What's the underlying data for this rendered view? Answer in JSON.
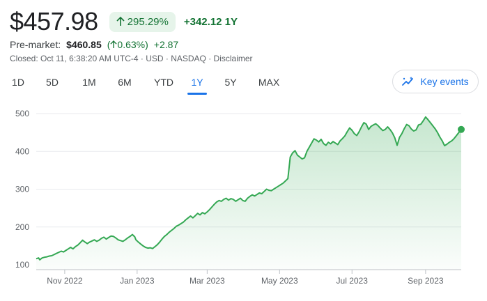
{
  "quote": {
    "price": "$457.98",
    "change_pct": "295.29%",
    "change_abs": "+342.12",
    "period": "1Y",
    "premarket_label": "Pre-market:",
    "premarket_price": "$460.85",
    "premarket_pct": "0.63%",
    "premarket_change": "+2.87",
    "closed_info": "Closed: Oct 11, 6:38:20 AM UTC-4 · USD · NASDAQ · ",
    "disclaimer": "Disclaimer"
  },
  "tabs": [
    "1D",
    "5D",
    "1M",
    "6M",
    "YTD",
    "1Y",
    "5Y",
    "MAX"
  ],
  "active_tab": "1Y",
  "key_events_label": "Key events",
  "colors": {
    "line": "#34a853",
    "positive": "#137333",
    "accent": "#1a73e8"
  },
  "chart_data": {
    "type": "area",
    "title": "",
    "xlabel": "",
    "ylabel": "",
    "ylim": [
      100,
      520
    ],
    "yticks": [
      100,
      200,
      300,
      400,
      500
    ],
    "xticks": [
      {
        "label": "Nov 2022",
        "x": 24
      },
      {
        "label": "Jan 2023",
        "x": 85
      },
      {
        "label": "Mar 2023",
        "x": 144
      },
      {
        "label": "May 2023",
        "x": 205
      },
      {
        "label": "Jul 2023",
        "x": 266
      },
      {
        "label": "Sep 2023",
        "x": 328
      }
    ],
    "x_domain": [
      0,
      358
    ],
    "grid": true,
    "series": [
      {
        "name": "",
        "points": [
          [
            0,
            116
          ],
          [
            2,
            118
          ],
          [
            3,
            113
          ],
          [
            5,
            118
          ],
          [
            7,
            120
          ],
          [
            9,
            121
          ],
          [
            11,
            123
          ],
          [
            13,
            124
          ],
          [
            15,
            127
          ],
          [
            17,
            130
          ],
          [
            19,
            133
          ],
          [
            21,
            136
          ],
          [
            23,
            134
          ],
          [
            25,
            138
          ],
          [
            27,
            142
          ],
          [
            29,
            146
          ],
          [
            31,
            142
          ],
          [
            33,
            148
          ],
          [
            35,
            152
          ],
          [
            37,
            158
          ],
          [
            39,
            165
          ],
          [
            41,
            160
          ],
          [
            43,
            156
          ],
          [
            45,
            160
          ],
          [
            47,
            163
          ],
          [
            49,
            166
          ],
          [
            51,
            162
          ],
          [
            53,
            165
          ],
          [
            55,
            170
          ],
          [
            57,
            173
          ],
          [
            59,
            168
          ],
          [
            61,
            172
          ],
          [
            63,
            176
          ],
          [
            65,
            175
          ],
          [
            67,
            171
          ],
          [
            69,
            166
          ],
          [
            71,
            164
          ],
          [
            73,
            162
          ],
          [
            75,
            166
          ],
          [
            77,
            171
          ],
          [
            79,
            175
          ],
          [
            81,
            180
          ],
          [
            83,
            174
          ],
          [
            84,
            166
          ],
          [
            86,
            160
          ],
          [
            88,
            155
          ],
          [
            90,
            150
          ],
          [
            92,
            146
          ],
          [
            94,
            144
          ],
          [
            96,
            145
          ],
          [
            98,
            143
          ],
          [
            100,
            148
          ],
          [
            102,
            153
          ],
          [
            104,
            160
          ],
          [
            106,
            168
          ],
          [
            108,
            175
          ],
          [
            110,
            180
          ],
          [
            112,
            186
          ],
          [
            114,
            191
          ],
          [
            116,
            196
          ],
          [
            118,
            202
          ],
          [
            120,
            205
          ],
          [
            122,
            209
          ],
          [
            124,
            213
          ],
          [
            126,
            219
          ],
          [
            128,
            224
          ],
          [
            130,
            229
          ],
          [
            132,
            224
          ],
          [
            134,
            230
          ],
          [
            136,
            236
          ],
          [
            138,
            232
          ],
          [
            140,
            238
          ],
          [
            142,
            235
          ],
          [
            144,
            240
          ],
          [
            146,
            246
          ],
          [
            148,
            253
          ],
          [
            150,
            260
          ],
          [
            152,
            266
          ],
          [
            154,
            270
          ],
          [
            156,
            268
          ],
          [
            158,
            273
          ],
          [
            160,
            276
          ],
          [
            162,
            271
          ],
          [
            164,
            275
          ],
          [
            166,
            273
          ],
          [
            168,
            268
          ],
          [
            170,
            272
          ],
          [
            172,
            276
          ],
          [
            174,
            270
          ],
          [
            176,
            268
          ],
          [
            178,
            276
          ],
          [
            180,
            281
          ],
          [
            182,
            285
          ],
          [
            184,
            282
          ],
          [
            186,
            286
          ],
          [
            188,
            290
          ],
          [
            190,
            288
          ],
          [
            192,
            294
          ],
          [
            194,
            300
          ],
          [
            196,
            297
          ],
          [
            198,
            296
          ],
          [
            200,
            300
          ],
          [
            202,
            304
          ],
          [
            204,
            308
          ],
          [
            206,
            312
          ],
          [
            208,
            316
          ],
          [
            210,
            322
          ],
          [
            212,
            328
          ],
          [
            214,
            385
          ],
          [
            216,
            396
          ],
          [
            218,
            402
          ],
          [
            220,
            390
          ],
          [
            222,
            385
          ],
          [
            224,
            380
          ],
          [
            226,
            383
          ],
          [
            228,
            400
          ],
          [
            230,
            411
          ],
          [
            232,
            422
          ],
          [
            234,
            433
          ],
          [
            236,
            430
          ],
          [
            238,
            425
          ],
          [
            240,
            432
          ],
          [
            242,
            421
          ],
          [
            244,
            416
          ],
          [
            246,
            424
          ],
          [
            248,
            420
          ],
          [
            250,
            426
          ],
          [
            252,
            422
          ],
          [
            254,
            418
          ],
          [
            256,
            428
          ],
          [
            258,
            434
          ],
          [
            260,
            441
          ],
          [
            262,
            452
          ],
          [
            264,
            462
          ],
          [
            266,
            456
          ],
          [
            268,
            447
          ],
          [
            270,
            442
          ],
          [
            272,
            452
          ],
          [
            274,
            465
          ],
          [
            276,
            476
          ],
          [
            278,
            472
          ],
          [
            280,
            458
          ],
          [
            282,
            466
          ],
          [
            284,
            470
          ],
          [
            286,
            473
          ],
          [
            288,
            468
          ],
          [
            290,
            461
          ],
          [
            292,
            455
          ],
          [
            294,
            458
          ],
          [
            296,
            465
          ],
          [
            298,
            458
          ],
          [
            300,
            449
          ],
          [
            302,
            436
          ],
          [
            304,
            416
          ],
          [
            306,
            437
          ],
          [
            308,
            447
          ],
          [
            310,
            460
          ],
          [
            312,
            471
          ],
          [
            314,
            468
          ],
          [
            316,
            459
          ],
          [
            318,
            454
          ],
          [
            320,
            457
          ],
          [
            322,
            470
          ],
          [
            324,
            472
          ],
          [
            326,
            481
          ],
          [
            328,
            491
          ],
          [
            330,
            484
          ],
          [
            332,
            476
          ],
          [
            334,
            468
          ],
          [
            336,
            460
          ],
          [
            338,
            450
          ],
          [
            340,
            438
          ],
          [
            342,
            428
          ],
          [
            344,
            415
          ],
          [
            346,
            419
          ],
          [
            348,
            424
          ],
          [
            350,
            428
          ],
          [
            352,
            434
          ],
          [
            354,
            442
          ],
          [
            356,
            450
          ],
          [
            358,
            458
          ]
        ]
      }
    ]
  }
}
